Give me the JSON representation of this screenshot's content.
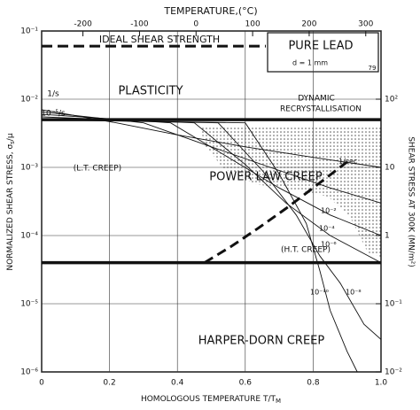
{
  "chart_data": {
    "type": "deformation-map",
    "title": "PURE LEAD",
    "subtitle": "d = 1 mm",
    "figure_number": "79",
    "xlabel": "HOMOLOGOUS TEMPERATURE T/T",
    "xlabel_sub": "M",
    "ylabel": "NORMALIZED SHEAR STRESS, σ",
    "ylabel_sub": "s",
    "ylabel_tail": "/μ",
    "x2label": "TEMPERATURE,(°C)",
    "y2label": "SHEAR STRESS AT 300K (MN/m²)",
    "xlim": [
      0,
      1
    ],
    "xticks": [
      0,
      0.2,
      0.4,
      0.6,
      0.8,
      {
        "value": 1,
        "label": "1.0"
      }
    ],
    "x2lim": [
      -273,
      327
    ],
    "x2ticks": [
      -200,
      -100,
      0,
      100,
      200,
      300
    ],
    "ylim": [
      1e-06,
      0.1
    ],
    "log_y": true,
    "yticks": [
      {
        "value": 1e-06,
        "label": "10⁻⁶"
      },
      {
        "value": 1e-05,
        "label": "10⁻⁵"
      },
      {
        "value": 0.0001,
        "label": "10⁻⁴"
      },
      {
        "value": 0.001,
        "label": "10⁻³"
      },
      {
        "value": 0.01,
        "label": "10⁻²"
      },
      {
        "value": 0.1,
        "label": "10⁻¹"
      }
    ],
    "y2lim": [
      0.01,
      1000
    ],
    "y2ticks": [
      {
        "value": 0.01,
        "label": "10⁻²"
      },
      {
        "value": 0.1,
        "label": "10⁻¹"
      },
      1,
      10,
      {
        "value": 100,
        "label": "10²"
      }
    ],
    "grid": true,
    "boundaries": [
      {
        "value": 0.06,
        "dashed": true
      },
      {
        "value": 0.005,
        "dashed": false
      },
      {
        "value": 4e-05,
        "dashed": false
      }
    ],
    "dashed_boundary": {
      "x": [
        0.48,
        0.56,
        0.64,
        0.72,
        0.8,
        0.9
      ],
      "y": [
        4e-05,
        7e-05,
        0.00013,
        0.00025,
        0.0005,
        0.0012
      ]
    },
    "annotations": [
      "IDEAL SHEAR STRENGTH",
      "PLASTICITY",
      "DYNAMIC",
      "RECRYSTALLISATION",
      "POWER LAW CREEP",
      "(L.T. CREEP)",
      "(H.T. CREEP)",
      "HARPER-DORN CREEP",
      "1/s",
      "10⁻⁵/s"
    ],
    "color": "#111111",
    "series": [
      {
        "name": "1/sec",
        "x": [
          0.0,
          0.22,
          0.4,
          0.6,
          0.8,
          1.0
        ],
        "values": [
          0.007,
          0.0045,
          0.003,
          0.002,
          0.0014,
          0.001
        ]
      },
      {
        "name": "10⁻²",
        "x": [
          0.0,
          0.3,
          0.5,
          0.7,
          0.85,
          1.0
        ],
        "values": [
          0.0065,
          0.0045,
          0.002,
          0.0009,
          0.0005,
          0.0003
        ]
      },
      {
        "name": "10⁻⁴",
        "x": [
          0.0,
          0.38,
          0.55,
          0.7,
          0.85,
          1.0
        ],
        "values": [
          0.006,
          0.0045,
          0.0014,
          0.0005,
          0.0002,
          0.0001
        ]
      },
      {
        "name": "10⁻⁶",
        "x": [
          0.0,
          0.45,
          0.6,
          0.72,
          0.85,
          1.0
        ],
        "values": [
          0.0055,
          0.0045,
          0.0011,
          0.0003,
          0.0001,
          4e-05
        ]
      },
      {
        "name": "10⁻⁸",
        "x": [
          0.0,
          0.52,
          0.65,
          0.75,
          0.82,
          0.88,
          0.95,
          1.0
        ],
        "values": [
          0.005,
          0.0045,
          0.0009,
          0.0002,
          5e-05,
          2e-05,
          5e-06,
          3e-06
        ]
      },
      {
        "name": "10⁻¹⁰",
        "x": [
          0.0,
          0.6,
          0.7,
          0.78,
          0.82,
          0.85,
          0.9,
          0.93
        ],
        "values": [
          0.005,
          0.0045,
          0.0008,
          0.00015,
          3e-05,
          8e-06,
          2e-06,
          1e-06
        ]
      }
    ]
  }
}
